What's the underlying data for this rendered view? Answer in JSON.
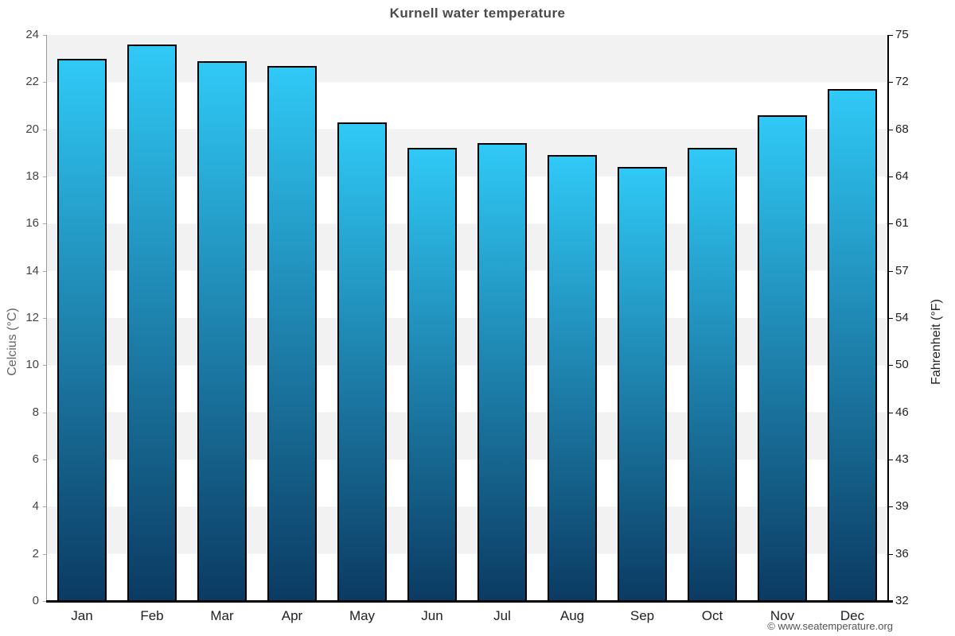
{
  "header": {
    "title": "Kurnell water temperature"
  },
  "axes": {
    "left_label": "Celcius (°C)",
    "right_label": "Fahrenheit (°F)"
  },
  "footer": {
    "copyright": "© www.seatemperature.org"
  },
  "colors": {
    "bar_gradient_top": "#30c9f6",
    "bar_gradient_bottom": "#0b3a62",
    "bar_border": "#000000",
    "band_shaded": "#f2f2f2",
    "band_plain": "#ffffff",
    "left_axis_line": "#999999",
    "right_axis_line": "#000000",
    "bottom_axis_line": "#000000",
    "title_text": "#4a4a4a"
  },
  "chart_data": {
    "type": "bar",
    "title": "Kurnell water temperature",
    "categories": [
      "Jan",
      "Feb",
      "Mar",
      "Apr",
      "May",
      "Jun",
      "Jul",
      "Aug",
      "Sep",
      "Oct",
      "Nov",
      "Dec"
    ],
    "values": [
      23.0,
      23.6,
      22.9,
      22.7,
      20.3,
      19.2,
      19.4,
      18.9,
      18.4,
      19.2,
      20.6,
      21.7
    ],
    "unit": "°C",
    "xlabel": "",
    "ylabel_left": "Celcius (°C)",
    "ylabel_right": "Fahrenheit (°F)",
    "ylim_left": [
      0,
      24
    ],
    "ylim_right": [
      32,
      75
    ],
    "left_ticks": [
      0,
      2,
      4,
      6,
      8,
      10,
      12,
      14,
      16,
      18,
      20,
      22,
      24
    ],
    "right_ticks": [
      32,
      36,
      39,
      43,
      46,
      50,
      54,
      57,
      61,
      64,
      68,
      72,
      75
    ],
    "grid": "alternating horizontal bands, shaded band at top",
    "legend": "none",
    "bar_style": "vertical gradient cyan to dark navy, black outline"
  }
}
